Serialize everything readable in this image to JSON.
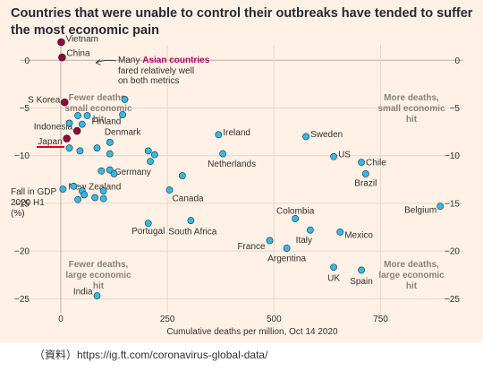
{
  "chart_data": {
    "type": "scatter",
    "title": "Countries that were unable to control their outbreaks have tended to suffer the most economic pain",
    "xlabel": "Cumulative deaths per million, Oct 14 2020",
    "ylabel": [
      "Fall in GDP",
      "2020 H1",
      "(%)"
    ],
    "xlim": [
      0,
      900
    ],
    "ylim": [
      -26,
      2
    ],
    "xticks": [
      0,
      250,
      500,
      750
    ],
    "yticks": [
      0,
      -5,
      -10,
      -15,
      -20,
      -25
    ],
    "grid": true,
    "colors": {
      "default": "#33b9ea",
      "highlight": "#96003f",
      "asian_label": "#b3006b",
      "grid": "#e6d8cc",
      "zero_line": "#bdb0a4",
      "text": "#33302e",
      "quadrant_text": "#8c8279",
      "underline": "#e0001f"
    },
    "quadrant_labels": [
      {
        "id": "tl",
        "lines": [
          "Fewer deaths,",
          "small economic",
          "hit"
        ]
      },
      {
        "id": "tr",
        "lines": [
          "More deaths,",
          "small economic",
          "hit"
        ]
      },
      {
        "id": "bl",
        "lines": [
          "Fewer deaths,",
          "large economic",
          "hit"
        ]
      },
      {
        "id": "br",
        "lines": [
          "More deaths,",
          "large economic",
          "hit"
        ]
      }
    ],
    "annotation": {
      "before": "Many ",
      "highlight": "Asian countries",
      "line2": "fared relatively well",
      "line3": "on both metrics"
    },
    "points": [
      {
        "label": "Vietnam",
        "x": 1,
        "y": 1.9,
        "highlight": true
      },
      {
        "label": "China",
        "x": 3,
        "y": 0.3,
        "highlight": true
      },
      {
        "label": "S Korea",
        "x": 9,
        "y": -4.4,
        "highlight": true
      },
      {
        "label": "Indonesia",
        "x": 38,
        "y": -7.4,
        "highlight": true
      },
      {
        "label": "Japan",
        "x": 14,
        "y": -8.2,
        "highlight": true
      },
      {
        "label": "Finland",
        "x": 62,
        "y": -5.8
      },
      {
        "label": "Denmark",
        "x": 115,
        "y": -8.6
      },
      {
        "label": "Germany",
        "x": 115,
        "y": -11.5
      },
      {
        "label": "New Zealand",
        "x": 5,
        "y": -13.5
      },
      {
        "label": "Portugal",
        "x": 205,
        "y": -17.1
      },
      {
        "label": "Canada",
        "x": 255,
        "y": -13.6
      },
      {
        "label": "South Africa",
        "x": 305,
        "y": -16.8
      },
      {
        "label": "Ireland",
        "x": 370,
        "y": -7.8
      },
      {
        "label": "Netherlands",
        "x": 380,
        "y": -9.8
      },
      {
        "label": "Sweden",
        "x": 575,
        "y": -8
      },
      {
        "label": "US",
        "x": 640,
        "y": -10.1
      },
      {
        "label": "Chile",
        "x": 705,
        "y": -10.7
      },
      {
        "label": "Brazil",
        "x": 715,
        "y": -11.9
      },
      {
        "label": "Belgium",
        "x": 890,
        "y": -15.3
      },
      {
        "label": "Colombia",
        "x": 550,
        "y": -16.6
      },
      {
        "label": "Italy",
        "x": 585,
        "y": -17.8
      },
      {
        "label": "Mexico",
        "x": 655,
        "y": -18
      },
      {
        "label": "France",
        "x": 490,
        "y": -18.9
      },
      {
        "label": "Argentina",
        "x": 530,
        "y": -19.7
      },
      {
        "label": "UK",
        "x": 640,
        "y": -21.7
      },
      {
        "label": "Spain",
        "x": 705,
        "y": -22
      },
      {
        "label": "India",
        "x": 85,
        "y": -24.7
      },
      {
        "label": "",
        "x": 150,
        "y": -4.1
      },
      {
        "label": "",
        "x": 40,
        "y": -5.8
      },
      {
        "label": "",
        "x": 20,
        "y": -6.6
      },
      {
        "label": "",
        "x": 50,
        "y": -6.7
      },
      {
        "label": "",
        "x": 145,
        "y": -5.7
      },
      {
        "label": "",
        "x": 20,
        "y": -9.2
      },
      {
        "label": "",
        "x": 45,
        "y": -9.5
      },
      {
        "label": "",
        "x": 85,
        "y": -9.2
      },
      {
        "label": "",
        "x": 115,
        "y": -9.8
      },
      {
        "label": "",
        "x": 205,
        "y": -9.5
      },
      {
        "label": "",
        "x": 220,
        "y": -9.9
      },
      {
        "label": "",
        "x": 210,
        "y": -10.6
      },
      {
        "label": "",
        "x": 95,
        "y": -11.6
      },
      {
        "label": "",
        "x": 125,
        "y": -11.9
      },
      {
        "label": "",
        "x": 285,
        "y": -12.1
      },
      {
        "label": "",
        "x": 30,
        "y": -13.2
      },
      {
        "label": "",
        "x": 50,
        "y": -13.7
      },
      {
        "label": "",
        "x": 100,
        "y": -13.7
      },
      {
        "label": "",
        "x": 55,
        "y": -14.1
      },
      {
        "label": "",
        "x": 80,
        "y": -14.4
      },
      {
        "label": "",
        "x": 40,
        "y": -14.6
      },
      {
        "label": "",
        "x": 100,
        "y": -14.5
      }
    ]
  },
  "source": "（資料）https://ig.ft.com/coronavirus-global-data/"
}
